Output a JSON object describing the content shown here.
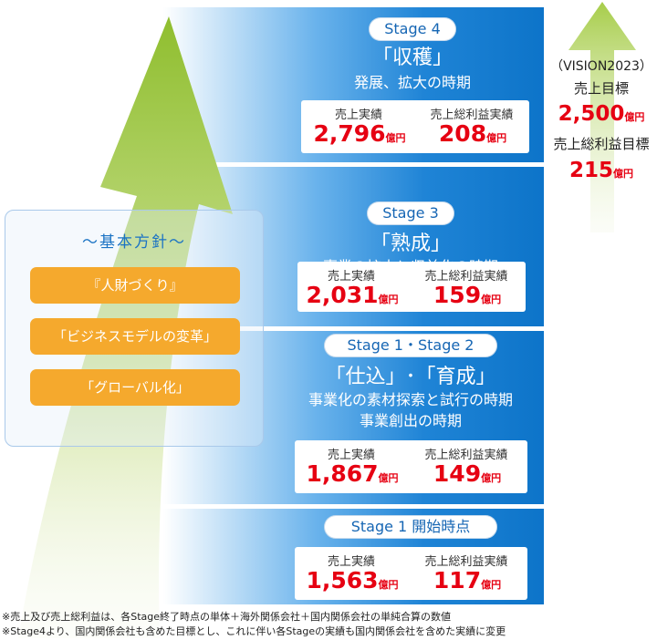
{
  "stages": [
    {
      "badge": "Stage 4",
      "title": "「収穫」",
      "desc_lines": [
        "発展、拡大の時期"
      ],
      "sales_label": "売上実績",
      "sales_value": "2,796",
      "profit_label": "売上総利益実績",
      "profit_value": "208",
      "unit": "億円"
    },
    {
      "badge": "Stage 3",
      "title": "「熟成」",
      "desc_lines": [
        "事業の拡大と収益化の時期"
      ],
      "sales_label": "売上実績",
      "sales_value": "2,031",
      "profit_label": "売上総利益実績",
      "profit_value": "159",
      "unit": "億円"
    },
    {
      "badge": "Stage 1・Stage 2",
      "title": "「仕込」･「育成」",
      "desc_lines": [
        "事業化の素材探索と試行の時期",
        "事業創出の時期"
      ],
      "sales_label": "売上実績",
      "sales_value": "1,867",
      "profit_label": "売上総利益実績",
      "profit_value": "149",
      "unit": "億円"
    },
    {
      "badge": "Stage 1 開始時点",
      "title": "",
      "desc_lines": [],
      "sales_label": "売上実績",
      "sales_value": "1,563",
      "profit_label": "売上総利益実績",
      "profit_value": "117",
      "unit": "億円"
    }
  ],
  "policy": {
    "title": "～基本方針～",
    "items": [
      "『人財づくり』",
      "「ビジネスモデルの変革」",
      "「グローバル化」"
    ]
  },
  "vision": {
    "heading": "（VISION2023）",
    "sales_label": "売上目標",
    "sales_value": "2,500",
    "profit_label": "売上総利益目標",
    "profit_value": "215",
    "unit": "億円"
  },
  "footnotes": [
    "※売上及び売上総利益は、各Stage終了時点の単体＋海外関係会社＋国内関係会社の単純合算の数値",
    "※Stage4より、国内関係会社も含めた目標とし、これに伴い各Stageの実績も国内関係会社を含めた実績に変更"
  ],
  "colors": {
    "band_blue": "#0d74c9",
    "value_red": "#e60012",
    "policy_orange": "#f5a92d",
    "arrow_green": "#9cc63c"
  }
}
